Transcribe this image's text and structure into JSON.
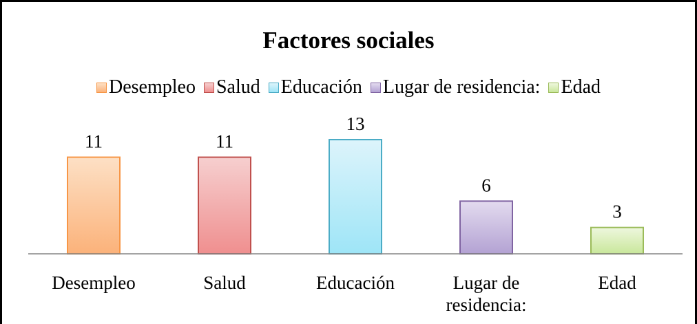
{
  "chart_data": {
    "type": "bar",
    "title": "Factores sociales",
    "categories": [
      "Desempleo",
      "Salud",
      "Educación",
      "Lugar de residencia:",
      "Edad"
    ],
    "values": [
      11,
      11,
      13,
      6,
      3
    ],
    "colors": [
      {
        "stroke": "#f79646",
        "light": "#fde0c5",
        "dark": "#fbb27a"
      },
      {
        "stroke": "#c0504d",
        "light": "#f6cfcf",
        "dark": "#ef8f8f"
      },
      {
        "stroke": "#4bacc6",
        "light": "#ddf4fb",
        "dark": "#9ee5f7"
      },
      {
        "stroke": "#8064a2",
        "light": "#e3dbef",
        "dark": "#b3a2d3"
      },
      {
        "stroke": "#9bbb59",
        "light": "#eef7de",
        "dark": "#c9e79b"
      }
    ],
    "legend": "top"
  }
}
